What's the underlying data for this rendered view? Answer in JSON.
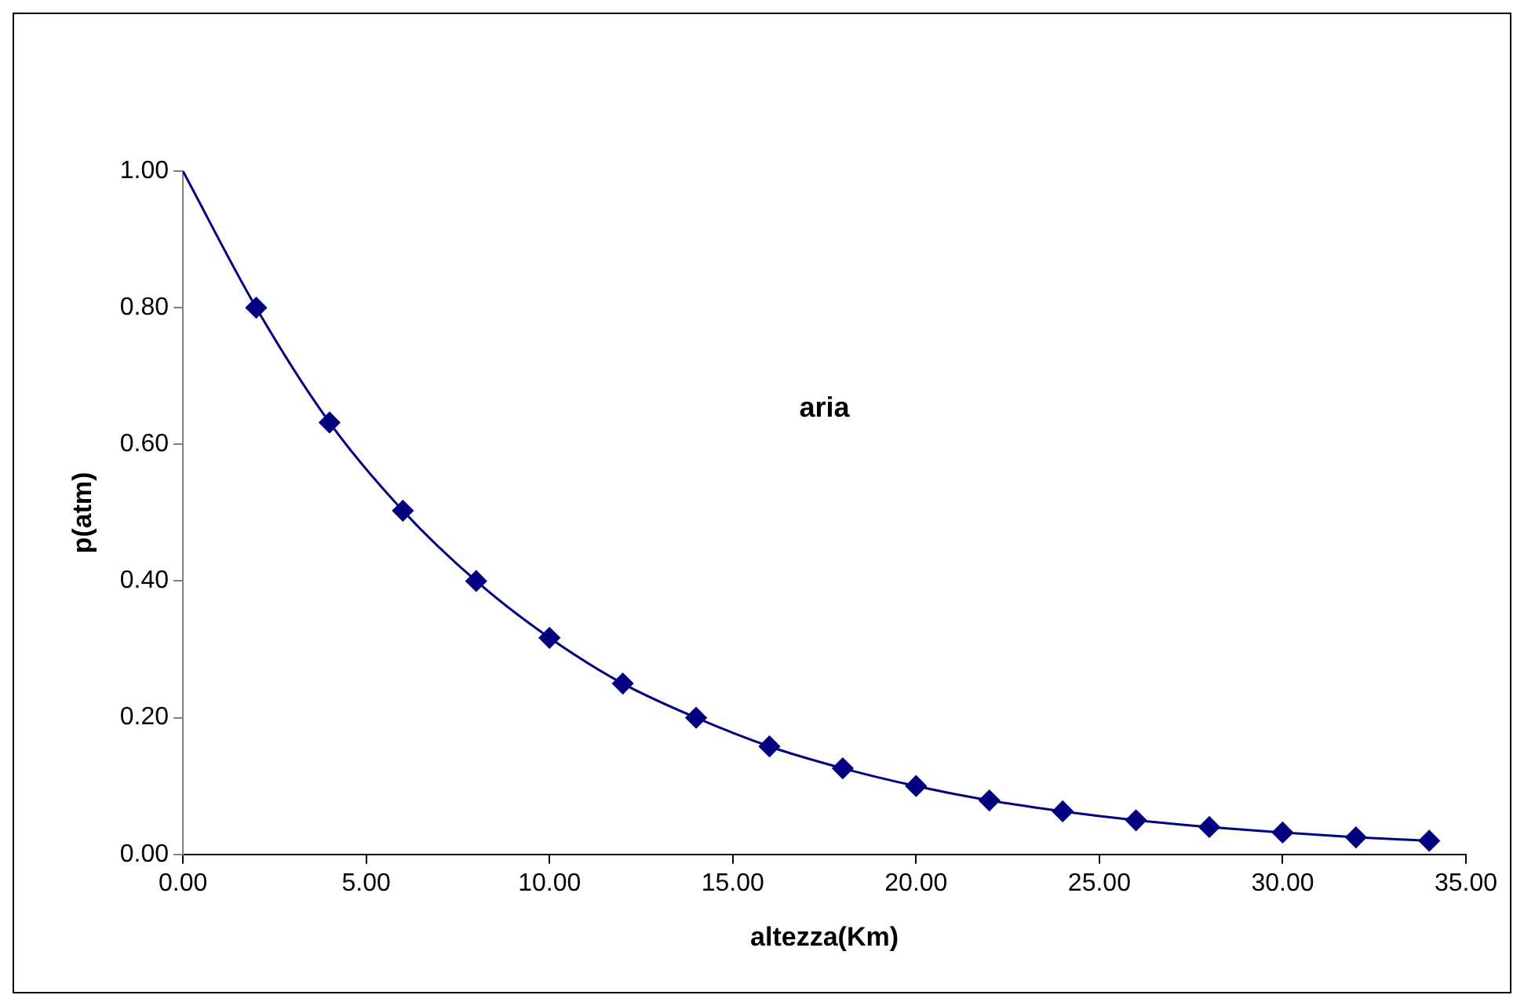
{
  "chart_data": {
    "type": "line",
    "xlabel": "altezza(Km)",
    "ylabel": "p(atm)",
    "annotations": [
      "aria"
    ],
    "xlim": [
      0,
      35
    ],
    "xticks": [
      {
        "value": 0,
        "label": "0.00"
      },
      {
        "value": 5,
        "label": "5.00"
      },
      {
        "value": 10,
        "label": "10.00"
      },
      {
        "value": 15,
        "label": "15.00"
      },
      {
        "value": 20,
        "label": "20.00"
      },
      {
        "value": 25,
        "label": "25.00"
      },
      {
        "value": 30,
        "label": "30.00"
      },
      {
        "value": 35,
        "label": "35.00"
      }
    ],
    "ylim": [
      0,
      1
    ],
    "yticks": [
      {
        "value": 0,
        "label": "0.00"
      },
      {
        "value": 0.2,
        "label": "0.20"
      },
      {
        "value": 0.4,
        "label": "0.40"
      },
      {
        "value": 0.6,
        "label": "0.60"
      },
      {
        "value": 0.8,
        "label": "0.80"
      },
      {
        "value": 1,
        "label": "1.00"
      }
    ],
    "grid": false,
    "legend": false,
    "series": [
      {
        "type": "line",
        "marker": "none",
        "color": "#000080",
        "x": [
          0,
          2,
          4,
          6,
          8,
          10,
          12,
          14,
          16,
          18,
          20,
          22,
          24,
          26,
          28,
          30,
          32,
          34
        ],
        "values": [
          1.0,
          0.8,
          0.632,
          0.503,
          0.4,
          0.317,
          0.25,
          0.2,
          0.158,
          0.126,
          0.1,
          0.079,
          0.063,
          0.05,
          0.04,
          0.032,
          0.025,
          0.02
        ]
      },
      {
        "type": "scatter",
        "marker": "diamond",
        "color": "#000080",
        "x": [
          2,
          4,
          6,
          8,
          10,
          12,
          14,
          16,
          18,
          20,
          22,
          24,
          26,
          28,
          30,
          32,
          34
        ],
        "values": [
          0.8,
          0.632,
          0.503,
          0.4,
          0.317,
          0.25,
          0.2,
          0.158,
          0.126,
          0.1,
          0.079,
          0.063,
          0.05,
          0.04,
          0.032,
          0.025,
          0.02
        ]
      }
    ]
  }
}
